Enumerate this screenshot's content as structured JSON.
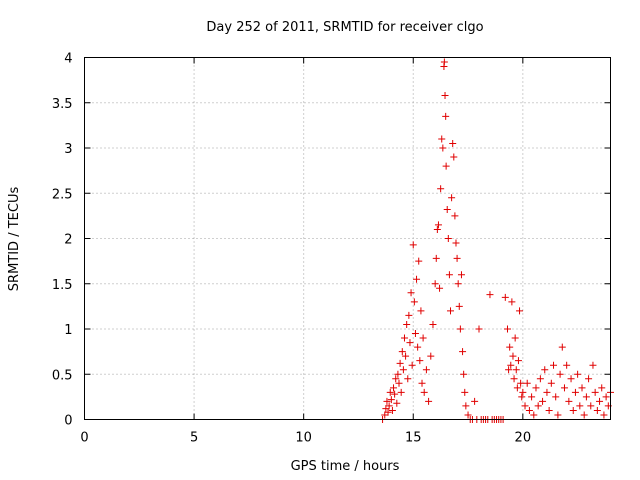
{
  "chart_data": {
    "type": "scatter",
    "title": "Day 252 of 2011, SRMTID for receiver clgo",
    "xlabel": "GPS time / hours",
    "ylabel": "SRMTID / TECUs",
    "xlim": [
      0,
      24
    ],
    "ylim": [
      0,
      4
    ],
    "xticks": [
      0,
      5,
      10,
      15,
      20
    ],
    "yticks": [
      0,
      0.5,
      1,
      1.5,
      2,
      2.5,
      3,
      3.5,
      4
    ],
    "grid": true,
    "marker": "+",
    "series": [
      {
        "name": "SRMTID",
        "color": "#e00000",
        "points": [
          [
            13.6,
            0.0
          ],
          [
            13.7,
            0.05
          ],
          [
            13.75,
            0.12
          ],
          [
            13.8,
            0.2
          ],
          [
            13.85,
            0.08
          ],
          [
            13.9,
            0.15
          ],
          [
            13.95,
            0.3
          ],
          [
            14.0,
            0.22
          ],
          [
            14.05,
            0.1
          ],
          [
            14.1,
            0.35
          ],
          [
            14.15,
            0.28
          ],
          [
            14.2,
            0.45
          ],
          [
            14.25,
            0.18
          ],
          [
            14.3,
            0.5
          ],
          [
            14.35,
            0.4
          ],
          [
            14.4,
            0.62
          ],
          [
            14.45,
            0.3
          ],
          [
            14.5,
            0.75
          ],
          [
            14.55,
            0.55
          ],
          [
            14.6,
            0.9
          ],
          [
            14.65,
            0.7
          ],
          [
            14.7,
            1.05
          ],
          [
            14.75,
            0.45
          ],
          [
            14.8,
            1.15
          ],
          [
            14.85,
            0.85
          ],
          [
            14.9,
            1.4
          ],
          [
            14.95,
            0.6
          ],
          [
            15.0,
            1.93
          ],
          [
            15.05,
            1.3
          ],
          [
            15.1,
            0.95
          ],
          [
            15.15,
            1.55
          ],
          [
            15.2,
            0.8
          ],
          [
            15.25,
            1.75
          ],
          [
            15.3,
            0.65
          ],
          [
            15.35,
            1.2
          ],
          [
            15.4,
            0.4
          ],
          [
            15.45,
            0.9
          ],
          [
            15.5,
            0.3
          ],
          [
            15.6,
            0.55
          ],
          [
            15.7,
            0.2
          ],
          [
            15.8,
            0.7
          ],
          [
            15.9,
            1.05
          ],
          [
            16.0,
            1.5
          ],
          [
            16.05,
            1.78
          ],
          [
            16.1,
            2.1
          ],
          [
            16.15,
            2.15
          ],
          [
            16.2,
            1.45
          ],
          [
            16.25,
            2.55
          ],
          [
            16.3,
            3.1
          ],
          [
            16.35,
            3.0
          ],
          [
            16.4,
            3.9
          ],
          [
            16.42,
            3.95
          ],
          [
            16.45,
            3.58
          ],
          [
            16.48,
            3.35
          ],
          [
            16.5,
            2.8
          ],
          [
            16.55,
            2.32
          ],
          [
            16.6,
            2.0
          ],
          [
            16.65,
            1.6
          ],
          [
            16.7,
            1.2
          ],
          [
            16.75,
            2.45
          ],
          [
            16.8,
            3.05
          ],
          [
            16.85,
            2.9
          ],
          [
            16.9,
            2.25
          ],
          [
            16.95,
            1.95
          ],
          [
            17.0,
            1.78
          ],
          [
            17.05,
            1.5
          ],
          [
            17.1,
            1.25
          ],
          [
            17.15,
            1.0
          ],
          [
            17.2,
            1.6
          ],
          [
            17.25,
            0.75
          ],
          [
            17.3,
            0.5
          ],
          [
            17.35,
            0.3
          ],
          [
            17.4,
            0.15
          ],
          [
            17.5,
            0.05
          ],
          [
            17.6,
            0.0
          ],
          [
            17.7,
            0.0
          ],
          [
            17.8,
            0.2
          ],
          [
            17.9,
            0.0
          ],
          [
            18.0,
            1.0
          ],
          [
            18.1,
            0.0
          ],
          [
            18.2,
            0.0
          ],
          [
            18.3,
            0.0
          ],
          [
            18.4,
            0.0
          ],
          [
            18.5,
            1.38
          ],
          [
            18.6,
            0.0
          ],
          [
            18.7,
            0.0
          ],
          [
            18.8,
            0.0
          ],
          [
            18.9,
            0.0
          ],
          [
            19.0,
            0.0
          ],
          [
            19.1,
            0.0
          ],
          [
            19.2,
            1.35
          ],
          [
            19.3,
            1.0
          ],
          [
            19.35,
            0.55
          ],
          [
            19.4,
            0.8
          ],
          [
            19.45,
            0.6
          ],
          [
            19.5,
            1.3
          ],
          [
            19.55,
            0.7
          ],
          [
            19.6,
            0.45
          ],
          [
            19.65,
            0.9
          ],
          [
            19.7,
            0.55
          ],
          [
            19.75,
            0.35
          ],
          [
            19.8,
            0.65
          ],
          [
            19.85,
            1.2
          ],
          [
            19.9,
            0.4
          ],
          [
            19.95,
            0.25
          ],
          [
            20.0,
            0.3
          ],
          [
            20.1,
            0.15
          ],
          [
            20.2,
            0.4
          ],
          [
            20.3,
            0.1
          ],
          [
            20.4,
            0.25
          ],
          [
            20.5,
            0.05
          ],
          [
            20.6,
            0.35
          ],
          [
            20.7,
            0.15
          ],
          [
            20.8,
            0.45
          ],
          [
            20.9,
            0.2
          ],
          [
            21.0,
            0.55
          ],
          [
            21.1,
            0.3
          ],
          [
            21.2,
            0.1
          ],
          [
            21.3,
            0.4
          ],
          [
            21.4,
            0.6
          ],
          [
            21.5,
            0.25
          ],
          [
            21.6,
            0.05
          ],
          [
            21.7,
            0.5
          ],
          [
            21.8,
            0.8
          ],
          [
            21.9,
            0.35
          ],
          [
            22.0,
            0.6
          ],
          [
            22.1,
            0.2
          ],
          [
            22.2,
            0.45
          ],
          [
            22.3,
            0.1
          ],
          [
            22.4,
            0.3
          ],
          [
            22.5,
            0.5
          ],
          [
            22.6,
            0.15
          ],
          [
            22.7,
            0.35
          ],
          [
            22.8,
            0.05
          ],
          [
            22.9,
            0.25
          ],
          [
            23.0,
            0.45
          ],
          [
            23.1,
            0.15
          ],
          [
            23.2,
            0.6
          ],
          [
            23.3,
            0.3
          ],
          [
            23.4,
            0.1
          ],
          [
            23.5,
            0.2
          ],
          [
            23.6,
            0.35
          ],
          [
            23.7,
            0.05
          ],
          [
            23.8,
            0.25
          ],
          [
            23.9,
            0.15
          ],
          [
            24.0,
            0.3
          ]
        ]
      }
    ]
  }
}
